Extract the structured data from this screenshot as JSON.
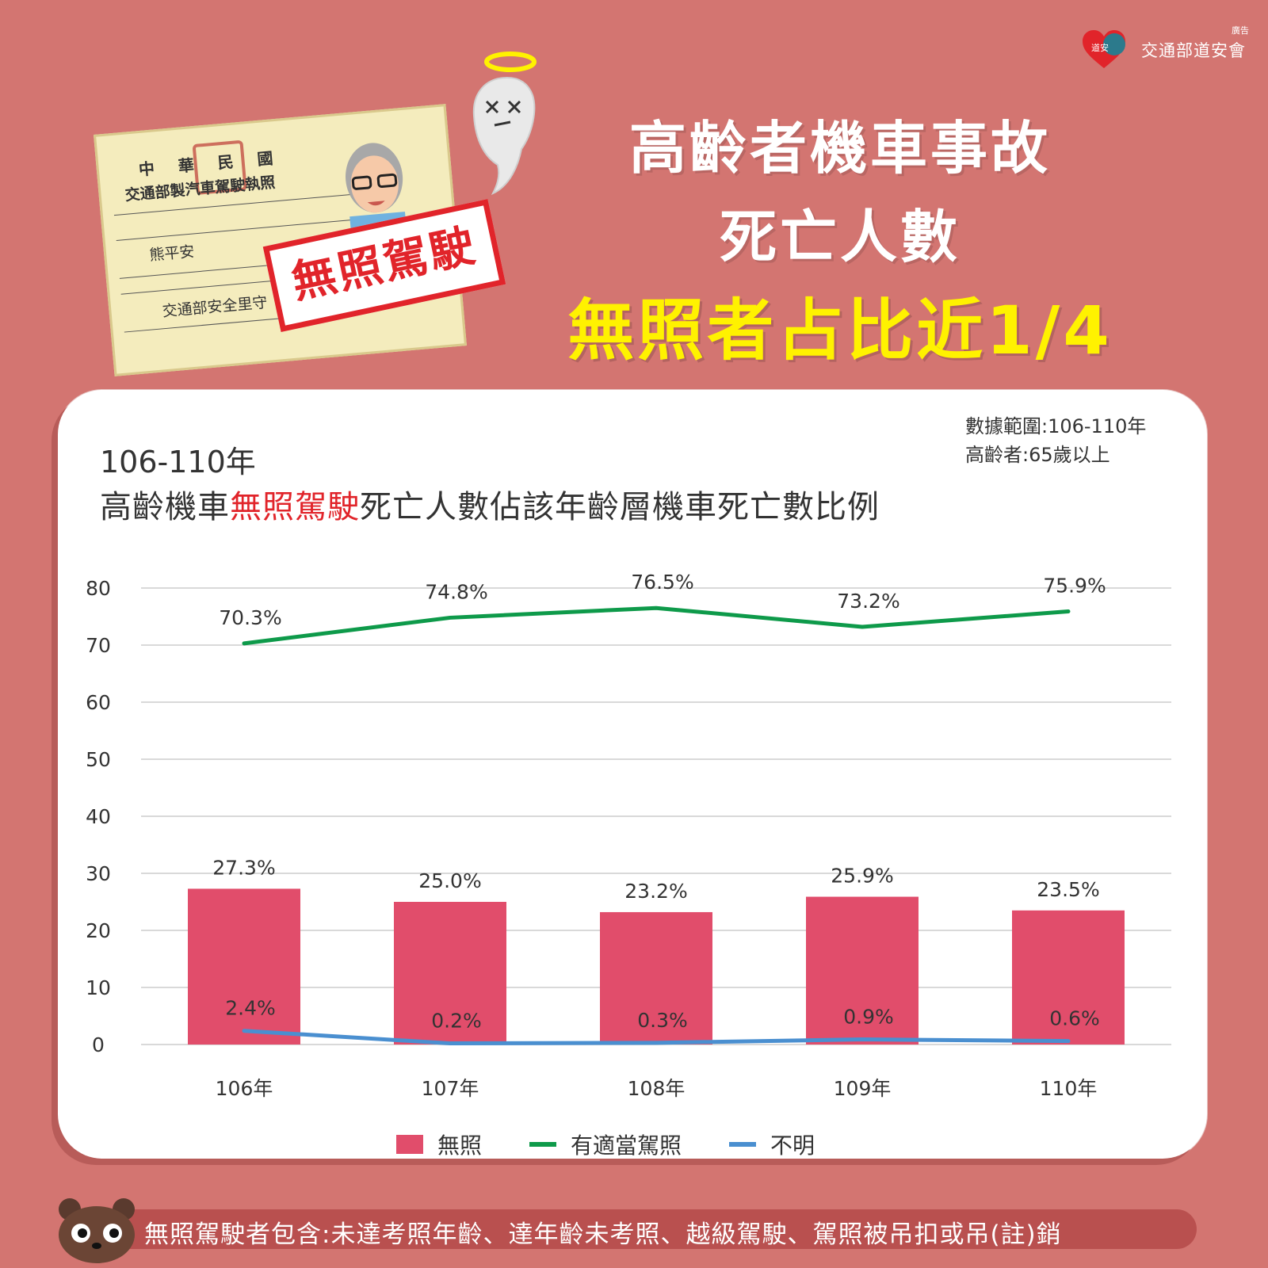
{
  "header": {
    "org": "交通部道安會",
    "ad_label": "廣告",
    "heart_text": "道安"
  },
  "illustration": {
    "license_line1": "中華民國",
    "license_line2": "交通部製汽車駕駛執照",
    "license_name": "熊平安",
    "license_address": "交通部安全里守",
    "stamp": "無照駕駛"
  },
  "titles": {
    "line1": "高齡者機車事故",
    "line2": "死亡人數",
    "line3": "無照者占比近1/4"
  },
  "note": {
    "range": "數據範圍:106-110年",
    "elderly": "高齡者:65歲以上"
  },
  "chart_title": {
    "period": "106-110年",
    "prefix": "高齡機車",
    "highlight": "無照駕駛",
    "suffix": "死亡人數佔該年齡層機車死亡數比例"
  },
  "chart_data": {
    "type": "bar",
    "categories": [
      "106年",
      "107年",
      "108年",
      "109年",
      "110年"
    ],
    "series": [
      {
        "name": "無照",
        "kind": "bar",
        "color": "#e14d6b",
        "values": [
          27.3,
          25.0,
          23.2,
          25.9,
          23.5
        ],
        "labels": [
          "27.3%",
          "25.0%",
          "23.2%",
          "25.9%",
          "23.5%"
        ]
      },
      {
        "name": "有適當駕照",
        "kind": "line",
        "color": "#0e9a4a",
        "values": [
          70.3,
          74.8,
          76.5,
          73.2,
          75.9
        ],
        "labels": [
          "70.3%",
          "74.8%",
          "76.5%",
          "73.2%",
          "75.9%"
        ]
      },
      {
        "name": "不明",
        "kind": "line",
        "color": "#4a8fd0",
        "values": [
          2.4,
          0.2,
          0.3,
          0.9,
          0.6
        ],
        "labels": [
          "2.4%",
          "0.2%",
          "0.3%",
          "0.9%",
          "0.6%"
        ]
      }
    ],
    "yticks": [
      0,
      10,
      20,
      30,
      40,
      50,
      60,
      70,
      80
    ],
    "ylim": [
      0,
      80
    ],
    "grid": true,
    "legend": "bottom"
  },
  "footer": {
    "text": "無照駕駛者包含:未達考照年齡、達年齡未考照、越級駕駛、駕照被吊扣或吊(註)銷"
  }
}
